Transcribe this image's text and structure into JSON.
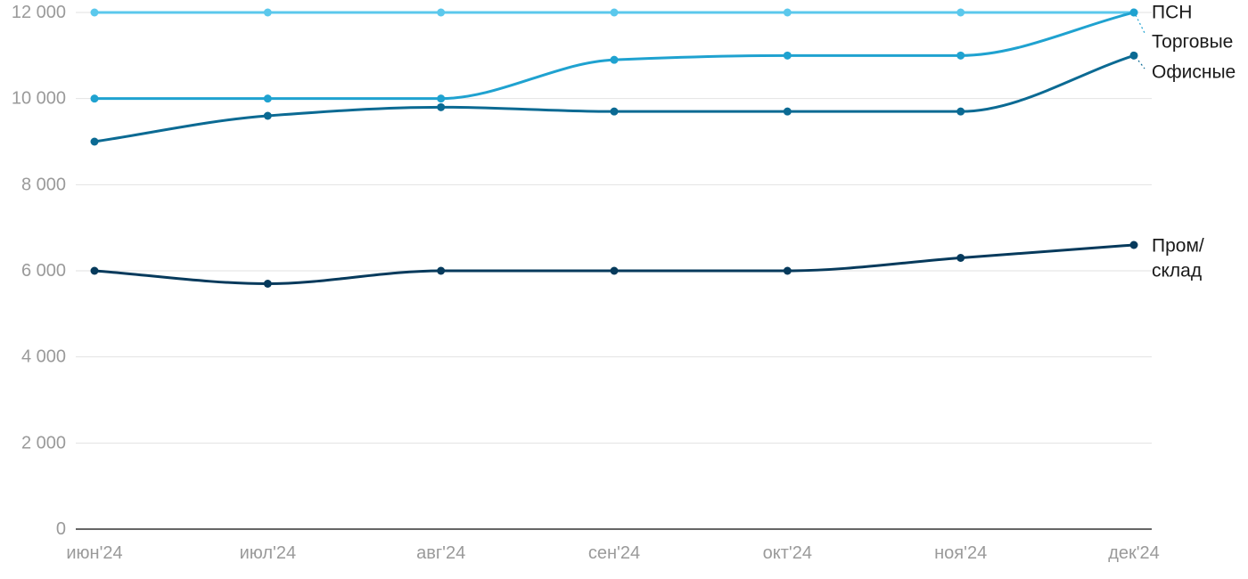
{
  "chart_data": {
    "type": "line",
    "categories": [
      "июн'24",
      "июл'24",
      "авг'24",
      "сен'24",
      "окт'24",
      "ноя'24",
      "дек'24"
    ],
    "ylim": [
      0,
      12000
    ],
    "yticks": [
      0,
      2000,
      4000,
      6000,
      8000,
      10000,
      12000
    ],
    "ytick_labels": [
      "0",
      "2 000",
      "4 000",
      "6 000",
      "8 000",
      "10 000",
      "12 000"
    ],
    "grid": true,
    "legend": "direct labels at right end of lines",
    "series": [
      {
        "name": "ПСН",
        "label_lines": [
          "ПСН"
        ],
        "color": "#5bc8ec",
        "values": [
          12000,
          12000,
          12000,
          12000,
          12000,
          12000,
          12000
        ]
      },
      {
        "name": "Торговые",
        "label_lines": [
          "Торговые"
        ],
        "color": "#1fa2d0",
        "values": [
          10000,
          10000,
          10000,
          10900,
          11000,
          11000,
          12000
        ]
      },
      {
        "name": "Офисные",
        "label_lines": [
          "Офисные"
        ],
        "color": "#0b6a93",
        "values": [
          9000,
          9600,
          9800,
          9700,
          9700,
          9700,
          11000
        ]
      },
      {
        "name": "Пром/склад",
        "label_lines": [
          "Пром/",
          "склад"
        ],
        "color": "#063a5c",
        "values": [
          6000,
          5700,
          6000,
          6000,
          6000,
          6300,
          6600
        ]
      }
    ]
  }
}
